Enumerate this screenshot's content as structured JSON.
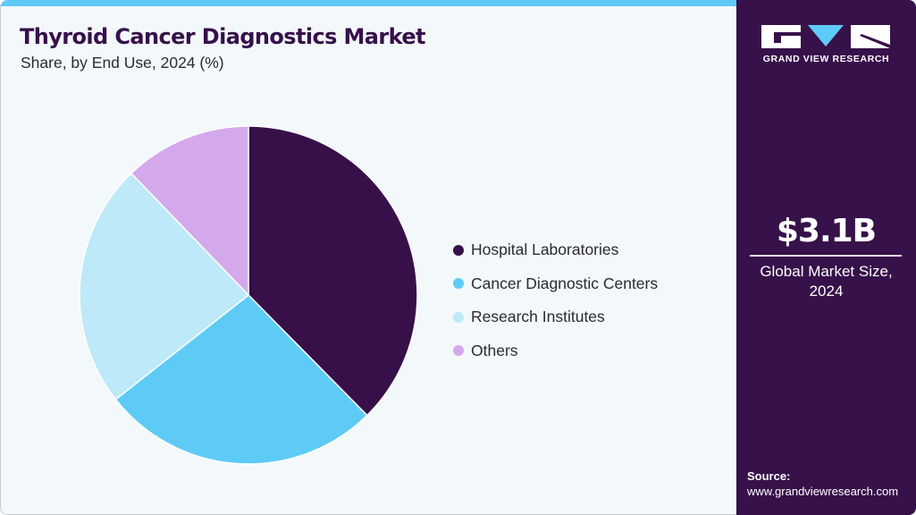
{
  "header": {
    "title": "Thyroid Cancer Diagnostics Market",
    "subtitle": "Share, by End Use, 2024 (%)"
  },
  "colors": {
    "background": "#f3f8fb",
    "accent_bar": "#5ecbf6",
    "side_panel": "#37114a"
  },
  "chart_data": {
    "type": "pie",
    "title": "Thyroid Cancer Diagnostics Market",
    "subtitle": "Share, by End Use, 2024 (%)",
    "categories": [
      "Hospital Laboratories",
      "Cancer Diagnostic Centers",
      "Research Institutes",
      "Others"
    ],
    "values": [
      37.6,
      26.8,
      23.4,
      12.2
    ],
    "colors": [
      "#37104a",
      "#5ecbf6",
      "#bde9f9",
      "#d4a9ec"
    ],
    "start_angle_deg": 0,
    "direction": "clockwise",
    "legend_position": "right"
  },
  "legend": {
    "items": [
      {
        "label": "Hospital Laboratories",
        "color": "#37104a"
      },
      {
        "label": "Cancer Diagnostic Centers",
        "color": "#5ecbf6"
      },
      {
        "label": "Research Institutes",
        "color": "#bde9f9"
      },
      {
        "label": "Others",
        "color": "#d4a9ec"
      }
    ]
  },
  "sidebar": {
    "logo_text": "GRAND VIEW RESEARCH",
    "market_value": "$3.1B",
    "market_label_line1": "Global Market Size,",
    "market_label_line2": "2024",
    "source_label": "Source:",
    "source_url": "www.grandviewresearch.com"
  }
}
